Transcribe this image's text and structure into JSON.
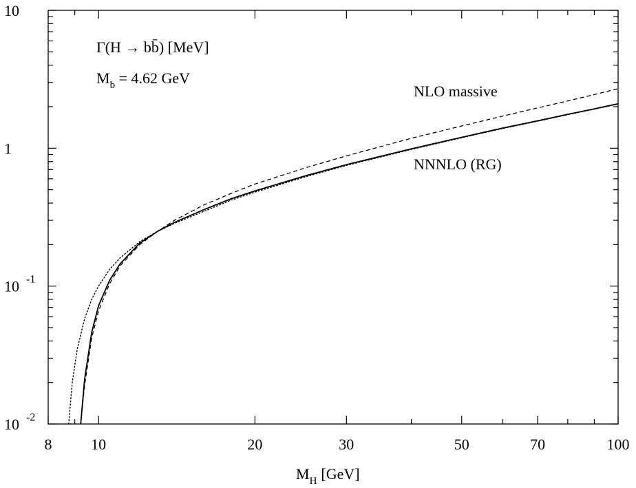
{
  "chart_data": {
    "type": "line",
    "title": "",
    "xlabel": "M_H [GeV]",
    "xlabel_main": "M",
    "xlabel_sub": "H",
    "xlabel_unit": "[GeV]",
    "ylabel": "",
    "x_scale": "log",
    "y_scale": "log",
    "xlim": [
      8,
      100
    ],
    "ylim": [
      0.01,
      10
    ],
    "grid": false,
    "x_ticks": [
      {
        "value": 8,
        "label": "8"
      },
      {
        "value": 10,
        "label": "10"
      },
      {
        "value": 20,
        "label": "20"
      },
      {
        "value": 30,
        "label": "30"
      },
      {
        "value": 50,
        "label": "50"
      },
      {
        "value": 70,
        "label": "70"
      },
      {
        "value": 100,
        "label": "100"
      }
    ],
    "x_minor_ticks": [
      9,
      40,
      60,
      80,
      90
    ],
    "y_ticks": [
      {
        "value": 10,
        "base": "10",
        "exp": ""
      },
      {
        "value": 1,
        "base": "1",
        "exp": ""
      },
      {
        "value": 0.1,
        "base": "10",
        "exp": "-1"
      },
      {
        "value": 0.01,
        "base": "10",
        "exp": "-2"
      }
    ],
    "annotations": {
      "quantity": "Γ(H → bb̄) [MeV]",
      "mass_main": "M",
      "mass_sub": "b",
      "mass_value": " = 4.62 GeV",
      "nlo_label": "NLO massive",
      "nnnlo_label": "NNNLO (RG)"
    },
    "series": [
      {
        "style": "solid",
        "x": [
          9.24,
          9.4,
          9.7,
          10.0,
          10.5,
          11.0,
          12.0,
          13.0,
          14.0,
          16.0,
          18.0,
          20.0,
          25.0,
          30.0,
          40.0,
          50.0,
          60.0,
          70.0,
          80.0,
          90.0,
          100.0
        ],
        "y": [
          0.01,
          0.021,
          0.046,
          0.072,
          0.11,
          0.145,
          0.205,
          0.25,
          0.29,
          0.36,
          0.43,
          0.49,
          0.63,
          0.76,
          0.99,
          1.2,
          1.4,
          1.58,
          1.76,
          1.93,
          2.1
        ]
      },
      {
        "style": "dashed",
        "x": [
          9.24,
          9.4,
          9.7,
          10.0,
          10.5,
          11.0,
          12.0,
          13.0,
          14.0,
          16.0,
          18.0,
          20.0,
          25.0,
          30.0,
          40.0,
          50.0,
          60.0,
          70.0,
          80.0,
          90.0,
          100.0
        ],
        "y": [
          0.01,
          0.019,
          0.042,
          0.066,
          0.104,
          0.14,
          0.2,
          0.25,
          0.3,
          0.39,
          0.47,
          0.55,
          0.72,
          0.88,
          1.18,
          1.45,
          1.71,
          1.96,
          2.2,
          2.45,
          2.7
        ]
      },
      {
        "style": "dotted",
        "x": [
          8.76,
          8.9,
          9.1,
          9.4,
          9.7,
          10.0,
          10.5,
          11.0,
          12.0,
          13.0,
          14.0,
          16.0,
          18.0,
          20.0,
          25.0,
          30.0,
          40.0,
          50.0,
          60.0,
          70.0,
          80.0,
          90.0,
          100.0
        ],
        "y": [
          0.01,
          0.02,
          0.035,
          0.058,
          0.08,
          0.1,
          0.132,
          0.16,
          0.21,
          0.25,
          0.285,
          0.35,
          0.42,
          0.48,
          0.62,
          0.75,
          0.98,
          1.19,
          1.39,
          1.57,
          1.75,
          1.92,
          2.09
        ]
      }
    ]
  }
}
